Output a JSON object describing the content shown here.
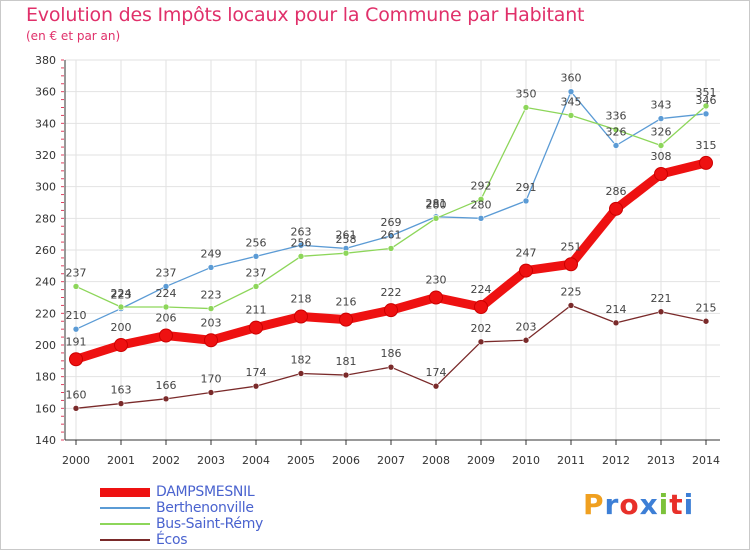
{
  "header": {
    "title": "Evolution des Impôts locaux pour la Commune par Habitant",
    "subtitle": "(en € et par an)"
  },
  "logo": {
    "text": "Proxiti",
    "colors": [
      "#f0a020",
      "#3d7fd6",
      "#e8302a",
      "#3d7fd6",
      "#7cc23a",
      "#e8302a",
      "#3d7fd6"
    ]
  },
  "chart_data": {
    "type": "line",
    "x": [
      2000,
      2001,
      2002,
      2003,
      2004,
      2005,
      2006,
      2007,
      2008,
      2009,
      2010,
      2011,
      2012,
      2013,
      2014
    ],
    "ylim": [
      140,
      380
    ],
    "yticks": [
      140,
      160,
      180,
      200,
      220,
      240,
      260,
      280,
      300,
      320,
      340,
      360,
      380
    ],
    "grid": true,
    "legend": "bottom-left",
    "series": [
      {
        "name": "DAMPSMESNIL",
        "color": "#ee1111",
        "values": [
          191,
          200,
          206,
          203,
          211,
          218,
          216,
          222,
          230,
          224,
          247,
          251,
          286,
          308,
          315
        ]
      },
      {
        "name": "Berthenonville",
        "color": "#5b9bd5",
        "values": [
          210,
          223,
          237,
          249,
          256,
          263,
          261,
          269,
          281,
          280,
          291,
          360,
          326,
          343,
          346
        ]
      },
      {
        "name": "Bus-Saint-Rémy",
        "color": "#8dd65a",
        "values": [
          237,
          224,
          224,
          223,
          237,
          256,
          258,
          261,
          280,
          292,
          350,
          345,
          336,
          326,
          351
        ]
      },
      {
        "name": "Écos",
        "color": "#7a2a2a",
        "values": [
          160,
          163,
          166,
          170,
          174,
          182,
          181,
          186,
          174,
          202,
          203,
          225,
          214,
          221,
          215
        ]
      }
    ]
  }
}
